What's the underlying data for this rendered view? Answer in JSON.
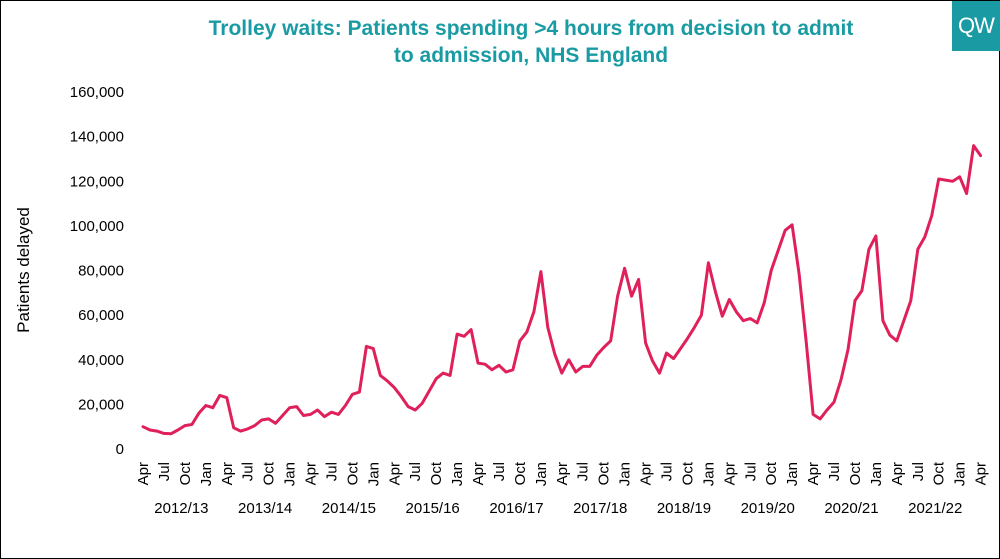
{
  "logo_text": "QW",
  "colors": {
    "title": "#1a9ba3",
    "line": "#e0205a",
    "logo_bg": "#1a9ba3"
  },
  "chart_data": {
    "type": "line",
    "title_line1": "Trolley waits: Patients spending >4 hours from decision to admit",
    "title_line2": "to admission, NHS England",
    "ylabel": "Patients delayed",
    "ylim": [
      0,
      160000
    ],
    "yticks": [
      0,
      20000,
      40000,
      60000,
      80000,
      100000,
      120000,
      140000,
      160000
    ],
    "ytick_labels": [
      "0",
      "20,000",
      "40,000",
      "60,000",
      "80,000",
      "100,000",
      "120,000",
      "140,000",
      "160,000"
    ],
    "month_labels": [
      "Apr",
      "Jul",
      "Oct",
      "Jan"
    ],
    "year_labels": [
      "2012/13",
      "2013/14",
      "2014/15",
      "2015/16",
      "2016/17",
      "2017/18",
      "2018/19",
      "2019/20",
      "2020/21",
      "2021/22"
    ],
    "series": [
      {
        "name": "Patients delayed",
        "values": [
          10000,
          8500,
          8000,
          7000,
          6800,
          8500,
          10500,
          11000,
          16000,
          19500,
          18500,
          24000,
          23000,
          9500,
          8000,
          9000,
          10500,
          13000,
          13500,
          11500,
          15000,
          18500,
          19000,
          15000,
          15500,
          17500,
          14500,
          16500,
          15500,
          19500,
          24500,
          25500,
          46000,
          45000,
          33000,
          30500,
          27500,
          23500,
          19000,
          17500,
          20500,
          26000,
          31500,
          34000,
          33000,
          51500,
          50500,
          53500,
          38500,
          38000,
          35500,
          37500,
          34500,
          35500,
          48500,
          52500,
          61500,
          79500,
          54500,
          42500,
          34000,
          40000,
          34500,
          37000,
          37000,
          42000,
          45500,
          48500,
          68500,
          81000,
          68500,
          76000,
          47500,
          39500,
          34000,
          43000,
          40500,
          45000,
          49500,
          54500,
          60000,
          83500,
          70500,
          59500,
          67000,
          61500,
          57500,
          58500,
          56500,
          65500,
          80000,
          89000,
          98000,
          100500,
          78500,
          48500,
          15500,
          13500,
          17500,
          21000,
          31000,
          44500,
          66500,
          71000,
          89500,
          95500,
          57500,
          51000,
          48500,
          57500,
          66500,
          89500,
          95000,
          104500,
          121000,
          120500,
          120000,
          122000,
          114500,
          136000,
          131500
        ]
      }
    ]
  }
}
